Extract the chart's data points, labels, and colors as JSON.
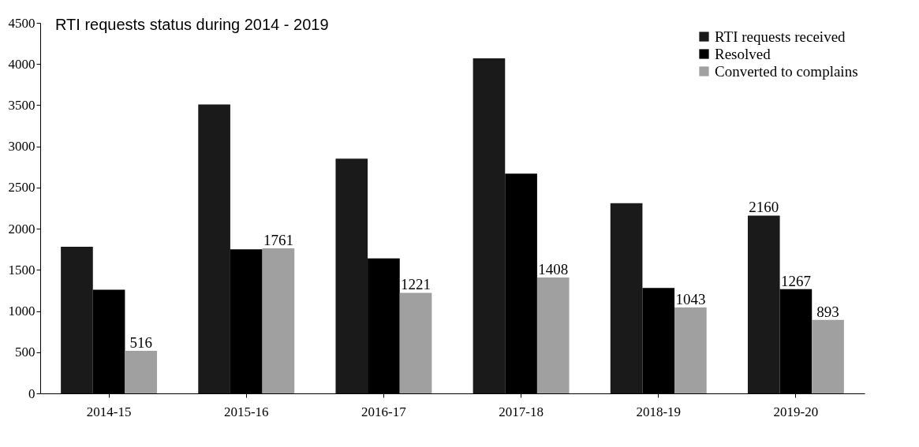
{
  "chart_data": {
    "type": "bar",
    "title": "RTI requests status during 2014 - 2019",
    "categories": [
      "2014-15",
      "2015-16",
      "2016-17",
      "2017-18",
      "2018-19",
      "2019-20"
    ],
    "series": [
      {
        "name": "RTI requests received",
        "color": "#1a1a1a",
        "values": [
          1780,
          3510,
          2850,
          4070,
          2310,
          2160
        ],
        "value_labels": [
          null,
          null,
          null,
          null,
          null,
          "2160"
        ]
      },
      {
        "name": "Resolved",
        "color": "#000000",
        "values": [
          1260,
          1750,
          1640,
          2670,
          1280,
          1267
        ],
        "value_labels": [
          null,
          null,
          null,
          null,
          null,
          "1267"
        ]
      },
      {
        "name": "Converted to complains",
        "color": "#a0a0a0",
        "values": [
          516,
          1761,
          1221,
          1408,
          1043,
          893
        ],
        "value_labels": [
          "516",
          "1761",
          "1221",
          "1408",
          "1043",
          "893"
        ]
      }
    ],
    "ylim": [
      0,
      4500
    ],
    "yticks": [
      0,
      500,
      1000,
      1500,
      2000,
      2500,
      3000,
      3500,
      4000,
      4500
    ],
    "legend": "top right"
  }
}
